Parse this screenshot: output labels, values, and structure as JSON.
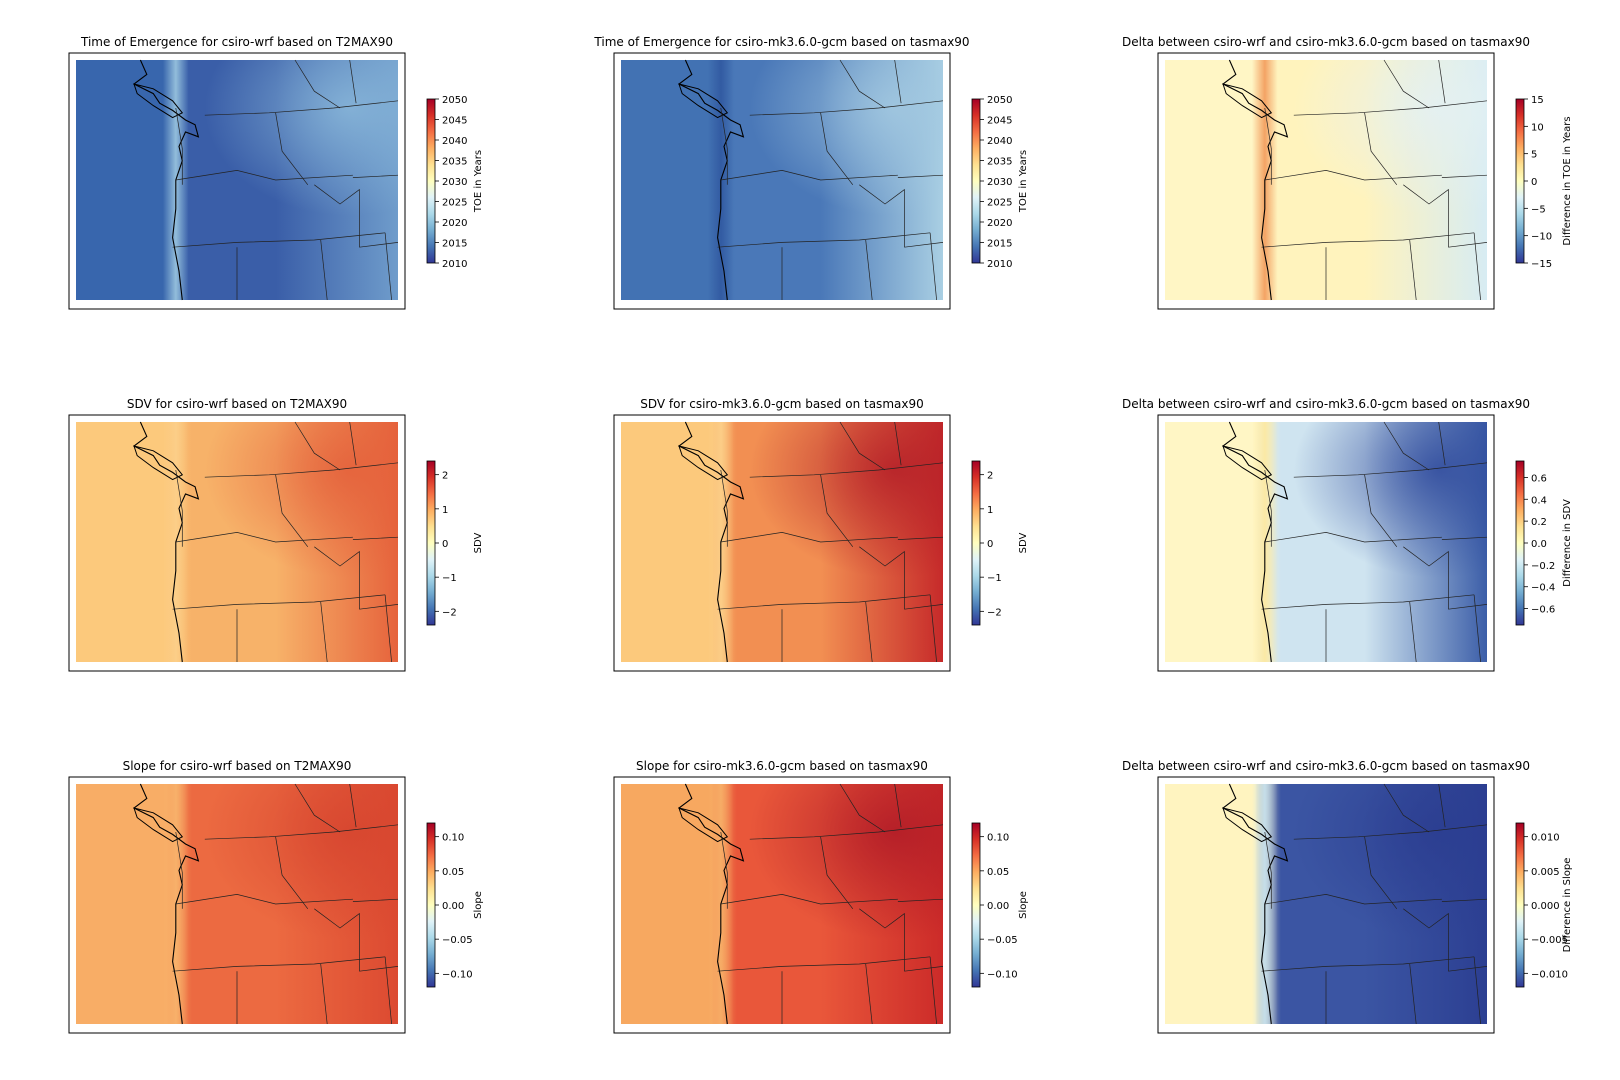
{
  "panels": [
    {
      "id": "toe-wrf",
      "title": "Time of Emergence for csiro-wrf based on T2MAX90",
      "cbar_label": "TOE in Years",
      "ticks": [
        "2050",
        "2045",
        "2040",
        "2035",
        "2030",
        "2025",
        "2020",
        "2015",
        "2010"
      ],
      "colormap": "RdYlBu_r",
      "field": "toe-wrf",
      "value_range": [
        2010,
        2050
      ]
    },
    {
      "id": "toe-gcm",
      "title": "Time of Emergence for csiro-mk3.6.0-gcm based on tasmax90",
      "cbar_label": "TOE in Years",
      "ticks": [
        "2050",
        "2045",
        "2040",
        "2035",
        "2030",
        "2025",
        "2020",
        "2015",
        "2010"
      ],
      "colormap": "RdYlBu_r",
      "field": "toe-gcm",
      "value_range": [
        2010,
        2050
      ]
    },
    {
      "id": "toe-delta",
      "title": "Delta between csiro-wrf and csiro-mk3.6.0-gcm based on tasmax90",
      "cbar_label": "Difference in TOE in Years",
      "ticks": [
        "15",
        "10",
        "5",
        "0",
        "−5",
        "−10",
        "−15"
      ],
      "colormap": "RdYlBu_r",
      "field": "toe-delta",
      "value_range": [
        -15,
        15
      ]
    },
    {
      "id": "sdv-wrf",
      "title": "SDV for csiro-wrf based on T2MAX90",
      "cbar_label": "SDV",
      "ticks": [
        "2",
        "1",
        "0",
        "−1",
        "−2"
      ],
      "colormap": "RdYlBu_r",
      "field": "sdv-wrf",
      "value_range": [
        -2.4,
        2.4
      ]
    },
    {
      "id": "sdv-gcm",
      "title": "SDV for csiro-mk3.6.0-gcm based on tasmax90",
      "cbar_label": "SDV",
      "ticks": [
        "2",
        "1",
        "0",
        "−1",
        "−2"
      ],
      "colormap": "RdYlBu_r",
      "field": "sdv-gcm",
      "value_range": [
        -2.4,
        2.4
      ]
    },
    {
      "id": "sdv-delta",
      "title": "Delta between csiro-wrf and csiro-mk3.6.0-gcm based on tasmax90",
      "cbar_label": "Difference in SDV",
      "ticks": [
        "0.6",
        "0.4",
        "0.2",
        "0.0",
        "−0.2",
        "−0.4",
        "−0.6"
      ],
      "colormap": "RdYlBu_r",
      "field": "sdv-delta",
      "value_range": [
        -0.75,
        0.75
      ]
    },
    {
      "id": "slope-wrf",
      "title": "Slope for csiro-wrf based on T2MAX90",
      "cbar_label": "Slope",
      "ticks": [
        "0.10",
        "0.05",
        "0.00",
        "−0.05",
        "−0.10"
      ],
      "colormap": "RdYlBu_r",
      "field": "slope-wrf",
      "value_range": [
        -0.12,
        0.12
      ]
    },
    {
      "id": "slope-gcm",
      "title": "Slope for csiro-mk3.6.0-gcm based on tasmax90",
      "cbar_label": "Slope",
      "ticks": [
        "0.10",
        "0.05",
        "0.00",
        "−0.05",
        "−0.10"
      ],
      "colormap": "RdYlBu_r",
      "field": "slope-gcm",
      "value_range": [
        -0.12,
        0.12
      ]
    },
    {
      "id": "slope-delta",
      "title": "Delta between csiro-wrf and csiro-mk3.6.0-gcm based on tasmax90",
      "cbar_label": "Difference in Slope",
      "ticks": [
        "0.010",
        "0.005",
        "0.000",
        "−0.005",
        "−0.010"
      ],
      "colormap": "RdYlBu_r",
      "field": "slope-delta",
      "value_range": [
        -0.012,
        0.012
      ]
    }
  ]
}
